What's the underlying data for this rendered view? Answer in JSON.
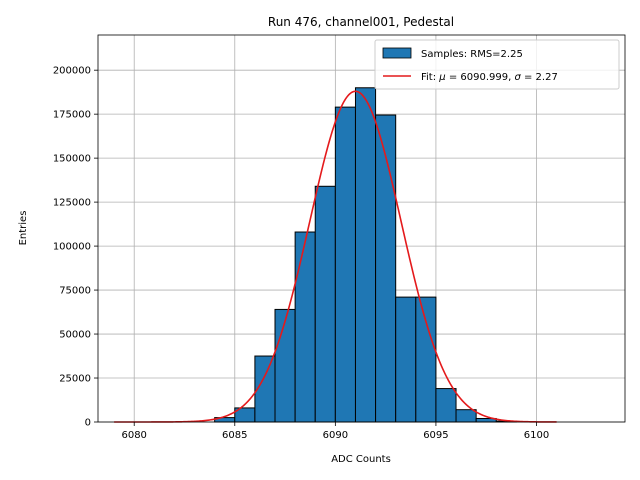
{
  "chart_data": {
    "type": "bar",
    "title": "Run 476, channel001, Pedestal",
    "xlabel": "ADC Counts",
    "ylabel": "Entries",
    "xlim": [
      6078.2,
      6104.4
    ],
    "ylim": [
      0,
      220000
    ],
    "xticks": [
      6080,
      6085,
      6090,
      6095,
      6100
    ],
    "yticks": [
      0,
      25000,
      50000,
      75000,
      100000,
      125000,
      150000,
      175000,
      200000
    ],
    "grid": true,
    "legend_position": "top-right",
    "histogram": {
      "name": "Samples: RMS=2.25",
      "color": "#1f77b4",
      "edge_color": "#000000",
      "bins": [
        {
          "x0": 6083,
          "x1": 6084,
          "value": 0
        },
        {
          "x0": 6084,
          "x1": 6085,
          "value": 2500
        },
        {
          "x0": 6085,
          "x1": 6086,
          "value": 8000
        },
        {
          "x0": 6086,
          "x1": 6087,
          "value": 37500
        },
        {
          "x0": 6087,
          "x1": 6088,
          "value": 64000
        },
        {
          "x0": 6088,
          "x1": 6089,
          "value": 108000
        },
        {
          "x0": 6089,
          "x1": 6090,
          "value": 134000
        },
        {
          "x0": 6090,
          "x1": 6091,
          "value": 179000
        },
        {
          "x0": 6091,
          "x1": 6092,
          "value": 190000
        },
        {
          "x0": 6092,
          "x1": 6093,
          "value": 174500
        },
        {
          "x0": 6093,
          "x1": 6094,
          "value": 71000
        },
        {
          "x0": 6094,
          "x1": 6095,
          "value": 71000
        },
        {
          "x0": 6095,
          "x1": 6096,
          "value": 19000
        },
        {
          "x0": 6096,
          "x1": 6097,
          "value": 7000
        },
        {
          "x0": 6097,
          "x1": 6098,
          "value": 2000
        },
        {
          "x0": 6098,
          "x1": 6099,
          "value": 500
        }
      ]
    },
    "fit": {
      "name": "Fit: μ = 6090.999, σ = 2.27",
      "label_prefix": "Fit: ",
      "label_mu_symbol": "μ",
      "label_mu_text": " = 6090.999, ",
      "label_sigma_symbol": "σ",
      "label_sigma_text": " = 2.27",
      "color": "#e41a1c",
      "type": "gaussian",
      "mu": 6090.999,
      "sigma": 2.27,
      "amplitude": 188000,
      "x_range": [
        6079,
        6101
      ]
    }
  }
}
